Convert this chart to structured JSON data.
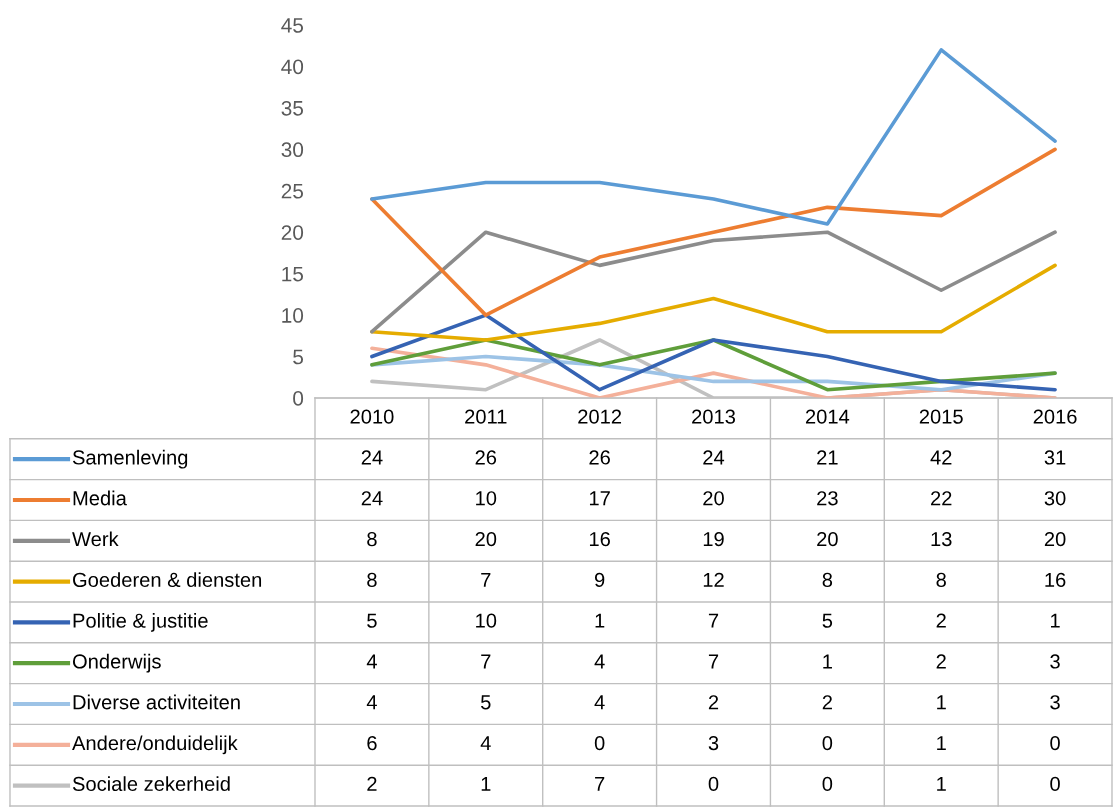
{
  "chart_data": {
    "type": "line",
    "categories": [
      "2010",
      "2011",
      "2012",
      "2013",
      "2014",
      "2015",
      "2016"
    ],
    "series": [
      {
        "name": "Samenleving",
        "color": "#5b9bd5",
        "values": [
          24,
          26,
          26,
          24,
          21,
          42,
          31
        ]
      },
      {
        "name": "Media",
        "color": "#ed7d31",
        "values": [
          24,
          10,
          17,
          20,
          23,
          22,
          30
        ]
      },
      {
        "name": "Werk",
        "color": "#8c8c8c",
        "values": [
          8,
          20,
          16,
          19,
          20,
          13,
          20
        ]
      },
      {
        "name": "Goederen & diensten",
        "color": "#e5ac00",
        "values": [
          8,
          7,
          9,
          12,
          8,
          8,
          16
        ]
      },
      {
        "name": "Politie & justitie",
        "color": "#3563b3",
        "values": [
          5,
          10,
          1,
          7,
          5,
          2,
          1
        ]
      },
      {
        "name": "Onderwijs",
        "color": "#5f9e3a",
        "values": [
          4,
          7,
          4,
          7,
          1,
          2,
          3
        ]
      },
      {
        "name": "Diverse activiteiten",
        "color": "#9dc3e6",
        "values": [
          4,
          5,
          4,
          2,
          2,
          1,
          3
        ]
      },
      {
        "name": "Andere/onduidelijk",
        "color": "#f4b09a",
        "values": [
          6,
          4,
          0,
          3,
          0,
          1,
          0
        ]
      },
      {
        "name": "Sociale zekerheid",
        "color": "#c0c0c0",
        "values": [
          2,
          1,
          7,
          0,
          0,
          1,
          0
        ]
      }
    ],
    "ylim": [
      0,
      45
    ],
    "yticks": [
      0,
      5,
      10,
      15,
      20,
      25,
      30,
      35,
      40,
      45
    ],
    "grid": false,
    "legend": "bottom",
    "marker": "none",
    "line_style": "solid",
    "data_labels": true
  }
}
